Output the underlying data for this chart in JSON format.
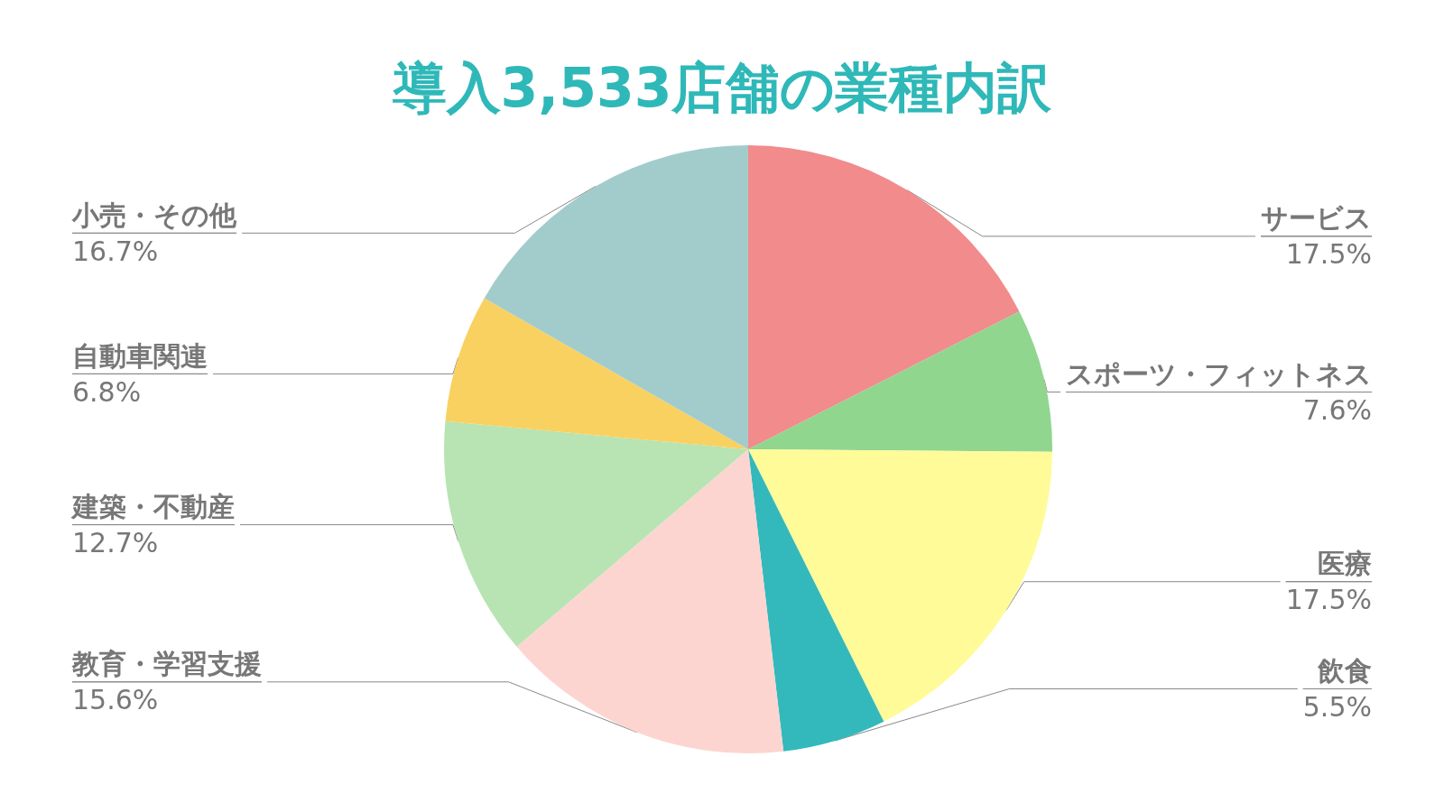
{
  "chart_data": {
    "type": "pie",
    "title": "導入3,533店舗の業種内訳",
    "categories": [
      "サービス",
      "スポーツ・フィットネス",
      "医療",
      "飲食",
      "教育・学習支援",
      "建築・不動産",
      "自動車関連",
      "小売・その他"
    ],
    "values": [
      17.5,
      7.6,
      17.5,
      5.5,
      15.6,
      12.7,
      6.8,
      16.7
    ],
    "value_labels": [
      "17.5%",
      "7.6%",
      "17.5%",
      "5.5%",
      "15.6%",
      "12.7%",
      "6.8%",
      "16.7%"
    ],
    "colors": [
      "#f28b8b",
      "#90d68e",
      "#fffb99",
      "#33b9bb",
      "#fdd5d0",
      "#b7e4b2",
      "#f9d160",
      "#a2cccb"
    ],
    "legend": false
  }
}
